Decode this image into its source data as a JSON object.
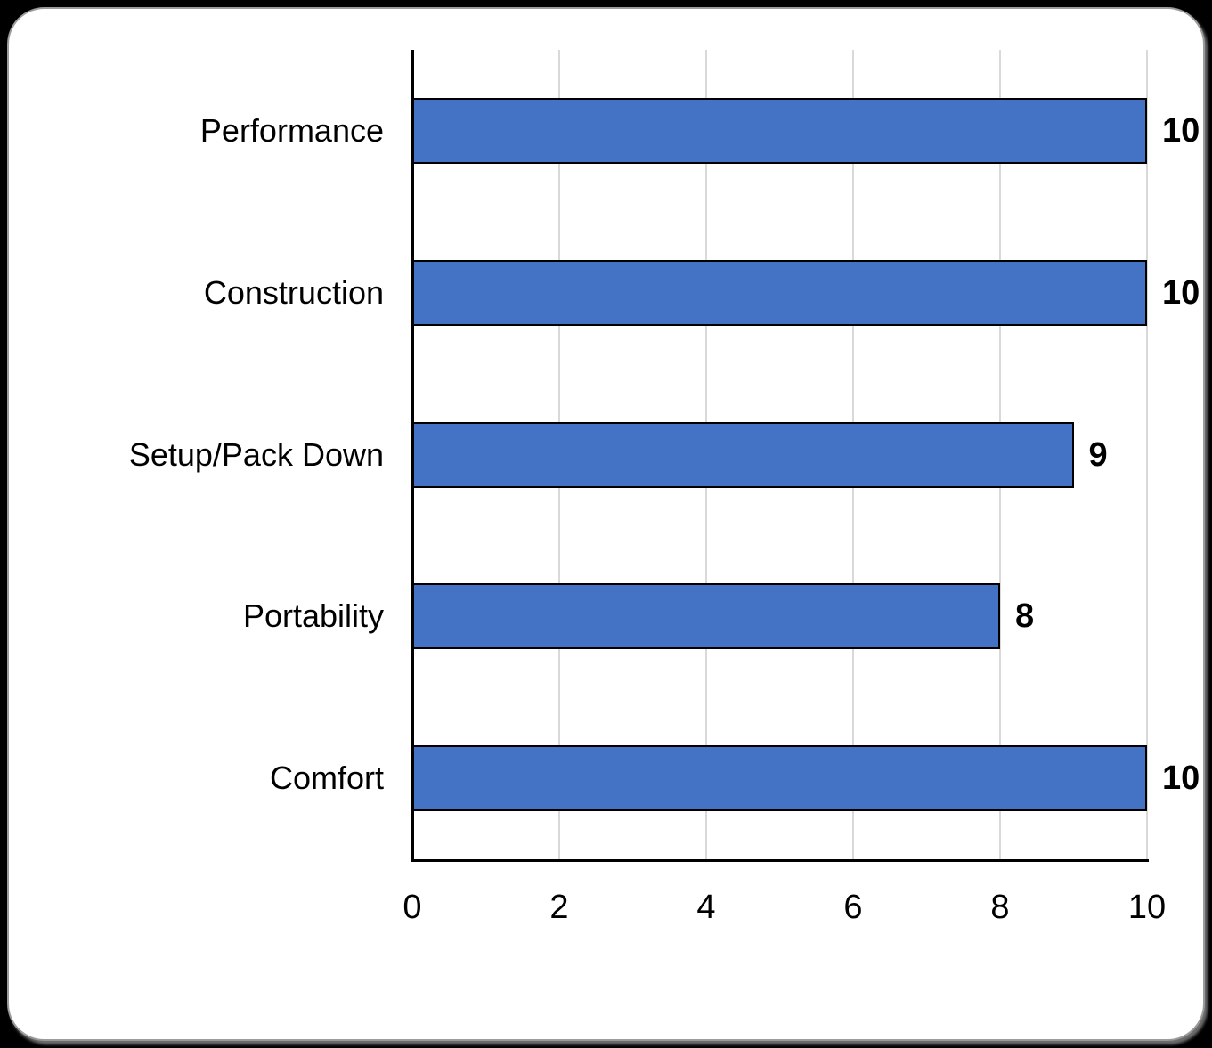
{
  "page": {
    "background_color": "#000000",
    "card_background_color": "#FFFFFF",
    "card_border_color": "#9B9B9B"
  },
  "chart_data": {
    "type": "bar",
    "orientation": "horizontal",
    "title": "",
    "xlabel": "",
    "ylabel": "",
    "categories": [
      "Performance",
      "Construction",
      "Setup/Pack Down",
      "Portability",
      "Comfort"
    ],
    "values": [
      10,
      10,
      9,
      8,
      10
    ],
    "value_labels": [
      "10",
      "10",
      "9",
      "8",
      "10"
    ],
    "xlim": [
      0,
      10
    ],
    "x_ticks": [
      0,
      2,
      4,
      6,
      8,
      10
    ],
    "x_tick_labels": [
      "0",
      "2",
      "4",
      "6",
      "8",
      "10"
    ],
    "grid": true,
    "grid_axis": "x",
    "legend": false,
    "bar_fill_color": "#4472C4",
    "bar_border_color": "#000000",
    "gridline_color": "#D9D9D9",
    "axis_line_color": "#000000",
    "label_text_color": "#000000"
  }
}
